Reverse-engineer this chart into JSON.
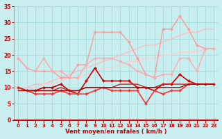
{
  "xlabel": "Vent moyen/en rafales ( km/h )",
  "xlim": [
    -0.5,
    23.5
  ],
  "ylim": [
    0,
    35
  ],
  "yticks": [
    0,
    5,
    10,
    15,
    20,
    25,
    30,
    35
  ],
  "xticks": [
    0,
    1,
    2,
    3,
    4,
    5,
    6,
    7,
    8,
    9,
    10,
    11,
    12,
    13,
    14,
    15,
    16,
    17,
    18,
    19,
    20,
    21,
    22,
    23
  ],
  "background_color": "#c8eef0",
  "grid_color": "#aadddd",
  "series": [
    {
      "x": [
        0,
        1,
        2,
        3,
        4,
        5,
        6,
        7,
        8,
        9,
        10,
        11,
        12,
        13,
        14,
        15,
        16,
        17,
        18,
        19,
        20,
        21,
        22,
        23
      ],
      "y": [
        9,
        10,
        11,
        11,
        12,
        13,
        14,
        15,
        16,
        17,
        18,
        19,
        20,
        21,
        22,
        23,
        23,
        24,
        25,
        26,
        27,
        27,
        28,
        28
      ],
      "color": "#ffbbbb",
      "lw": 1.0,
      "marker": null,
      "ms": 0
    },
    {
      "x": [
        0,
        1,
        2,
        3,
        4,
        5,
        6,
        7,
        8,
        9,
        10,
        11,
        12,
        13,
        14,
        15,
        16,
        17,
        18,
        19,
        20,
        21,
        22,
        23
      ],
      "y": [
        9,
        9,
        10,
        11,
        11,
        12,
        13,
        13,
        14,
        15,
        16,
        16,
        17,
        18,
        18,
        19,
        19,
        20,
        20,
        21,
        21,
        21,
        22,
        22
      ],
      "color": "#ffcccc",
      "lw": 1.0,
      "marker": null,
      "ms": 0
    },
    {
      "x": [
        0,
        1,
        2,
        3,
        4,
        5,
        6,
        7,
        8,
        9,
        10,
        11,
        12,
        13,
        14,
        15,
        16,
        17,
        18,
        19,
        20,
        21,
        22,
        23
      ],
      "y": [
        19,
        16,
        15,
        15,
        15,
        13,
        13,
        17,
        17,
        27,
        27,
        27,
        27,
        24,
        19,
        14,
        13,
        28,
        28,
        32,
        28,
        23,
        22,
        22
      ],
      "color": "#ff9999",
      "lw": 1.0,
      "marker": "D",
      "ms": 2.0
    },
    {
      "x": [
        0,
        1,
        2,
        3,
        4,
        5,
        6,
        7,
        8,
        9,
        10,
        11,
        12,
        13,
        14,
        15,
        16,
        17,
        18,
        19,
        20,
        21,
        22,
        23
      ],
      "y": [
        19,
        16,
        15,
        19,
        15,
        15,
        13,
        13,
        17,
        19,
        19,
        19,
        18,
        17,
        15,
        14,
        13,
        14,
        14,
        19,
        19,
        15,
        22,
        22
      ],
      "color": "#ffaaaa",
      "lw": 1.0,
      "marker": "D",
      "ms": 2.0
    },
    {
      "x": [
        0,
        1,
        2,
        3,
        4,
        5,
        6,
        7,
        8,
        9,
        10,
        11,
        12,
        13,
        14,
        15,
        16,
        17,
        18,
        19,
        20,
        21,
        22,
        23
      ],
      "y": [
        10,
        9,
        9,
        10,
        10,
        11,
        9,
        8,
        12,
        16,
        12,
        12,
        12,
        12,
        10,
        10,
        9,
        11,
        11,
        14,
        12,
        11,
        11,
        11
      ],
      "color": "#cc0000",
      "lw": 1.2,
      "marker": "D",
      "ms": 2.0
    },
    {
      "x": [
        0,
        1,
        2,
        3,
        4,
        5,
        6,
        7,
        8,
        9,
        10,
        11,
        12,
        13,
        14,
        15,
        16,
        17,
        18,
        19,
        20,
        21,
        22,
        23
      ],
      "y": [
        10,
        9,
        8,
        8,
        8,
        9,
        8,
        8,
        8,
        9,
        10,
        9,
        9,
        9,
        9,
        5,
        9,
        8,
        9,
        9,
        11,
        11,
        11,
        11
      ],
      "color": "#ff3333",
      "lw": 1.2,
      "marker": "D",
      "ms": 2.0
    },
    {
      "x": [
        0,
        1,
        2,
        3,
        4,
        5,
        6,
        7,
        8,
        9,
        10,
        11,
        12,
        13,
        14,
        15,
        16,
        17,
        18,
        19,
        20,
        21,
        22,
        23
      ],
      "y": [
        10,
        9,
        9,
        9,
        9,
        10,
        9,
        9,
        10,
        10,
        10,
        10,
        11,
        11,
        11,
        10,
        10,
        11,
        11,
        11,
        11,
        11,
        11,
        11
      ],
      "color": "#cc2222",
      "lw": 1.0,
      "marker": null,
      "ms": 0
    },
    {
      "x": [
        0,
        1,
        2,
        3,
        4,
        5,
        6,
        7,
        8,
        9,
        10,
        11,
        12,
        13,
        14,
        15,
        16,
        17,
        18,
        19,
        20,
        21,
        22,
        23
      ],
      "y": [
        9,
        9,
        9,
        9,
        9,
        9,
        9,
        9,
        10,
        10,
        10,
        10,
        10,
        10,
        10,
        10,
        10,
        10,
        10,
        10,
        11,
        11,
        11,
        11
      ],
      "color": "#aa0000",
      "lw": 1.0,
      "marker": null,
      "ms": 0
    }
  ]
}
